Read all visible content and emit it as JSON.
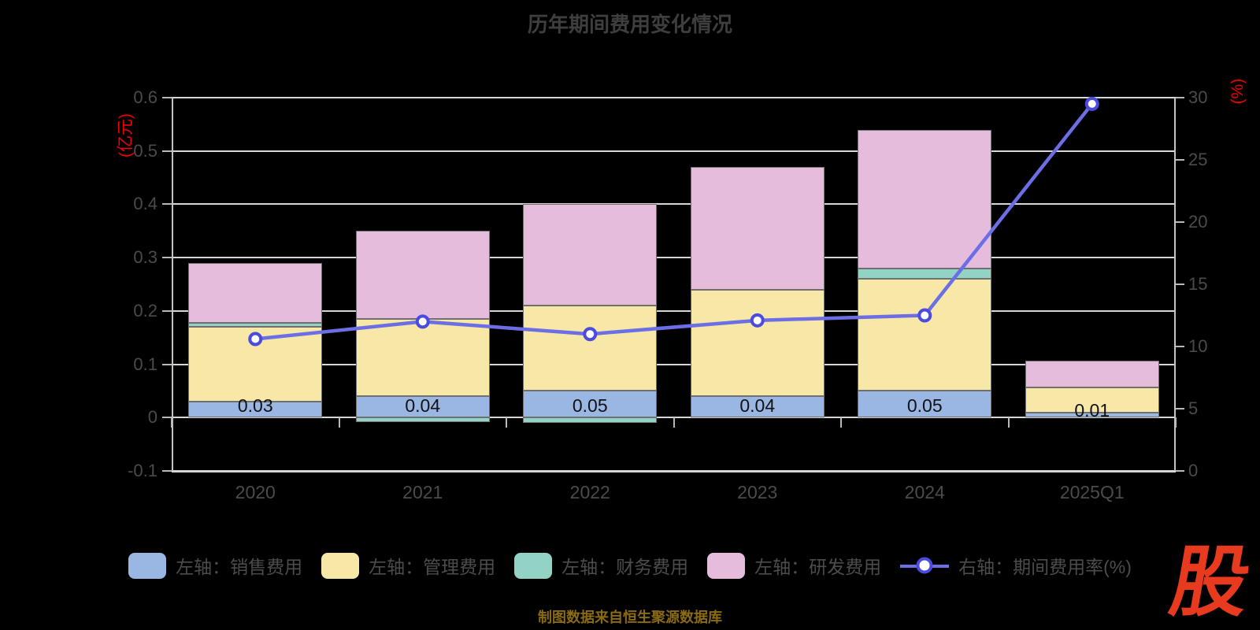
{
  "title": "历年期间费用变化情况",
  "footer": {
    "source_note": "制图数据来自恒生聚源数据库",
    "source_color": "#8a6b12",
    "logo_text": "股",
    "logo_color": "#e73a1e"
  },
  "chart_data": {
    "type": "stacked-bar+line",
    "title": "历年期间费用变化情况",
    "categories": [
      "2020",
      "2021",
      "2022",
      "2023",
      "2024",
      "2025Q1"
    ],
    "left_axis": {
      "unit": "(亿元)",
      "unit_color": "#f00000",
      "min": -0.1,
      "max": 0.6,
      "tick_labels": [
        "0.6",
        "0.5",
        "0.4",
        "0.3",
        "0.2",
        "0.1",
        "0",
        "-0.1"
      ]
    },
    "right_axis": {
      "unit": "(%)",
      "unit_color": "#f00000",
      "min": 0,
      "max": 30,
      "tick_labels": [
        "30",
        "25",
        "20",
        "15",
        "10",
        "5",
        "0"
      ]
    },
    "bar_series": [
      {
        "key": "sales",
        "name": "左轴：销售费用",
        "color": "#9ab7e3",
        "values": [
          0.03,
          0.04,
          0.05,
          0.04,
          0.05,
          0.01
        ]
      },
      {
        "key": "admin",
        "name": "左轴：管理费用",
        "color": "#f7e8a8",
        "values": [
          0.14,
          0.145,
          0.16,
          0.2,
          0.21,
          0.047
        ]
      },
      {
        "key": "finance",
        "name": "左轴：财务费用",
        "color": "#93d3c6",
        "values": [
          0.008,
          -0.008,
          -0.01,
          0.0,
          0.02,
          0.0
        ]
      },
      {
        "key": "rd",
        "name": "左轴：研发费用",
        "color": "#e5bcdc",
        "values": [
          0.112,
          0.165,
          0.19,
          0.23,
          0.26,
          0.05
        ]
      }
    ],
    "line_series": {
      "key": "expense-ratio",
      "name": "右轴：期间费用率(%)",
      "color": "#6c6ee6",
      "marker_ring": "#4b4bdf",
      "values": [
        10.6,
        12.0,
        11.0,
        12.1,
        12.5,
        29.5
      ]
    },
    "bar_value_labels": [
      "0.03",
      "0.04",
      "0.05",
      "0.04",
      "0.05",
      "0.01"
    ],
    "grid": true,
    "legend_position": "bottom"
  }
}
